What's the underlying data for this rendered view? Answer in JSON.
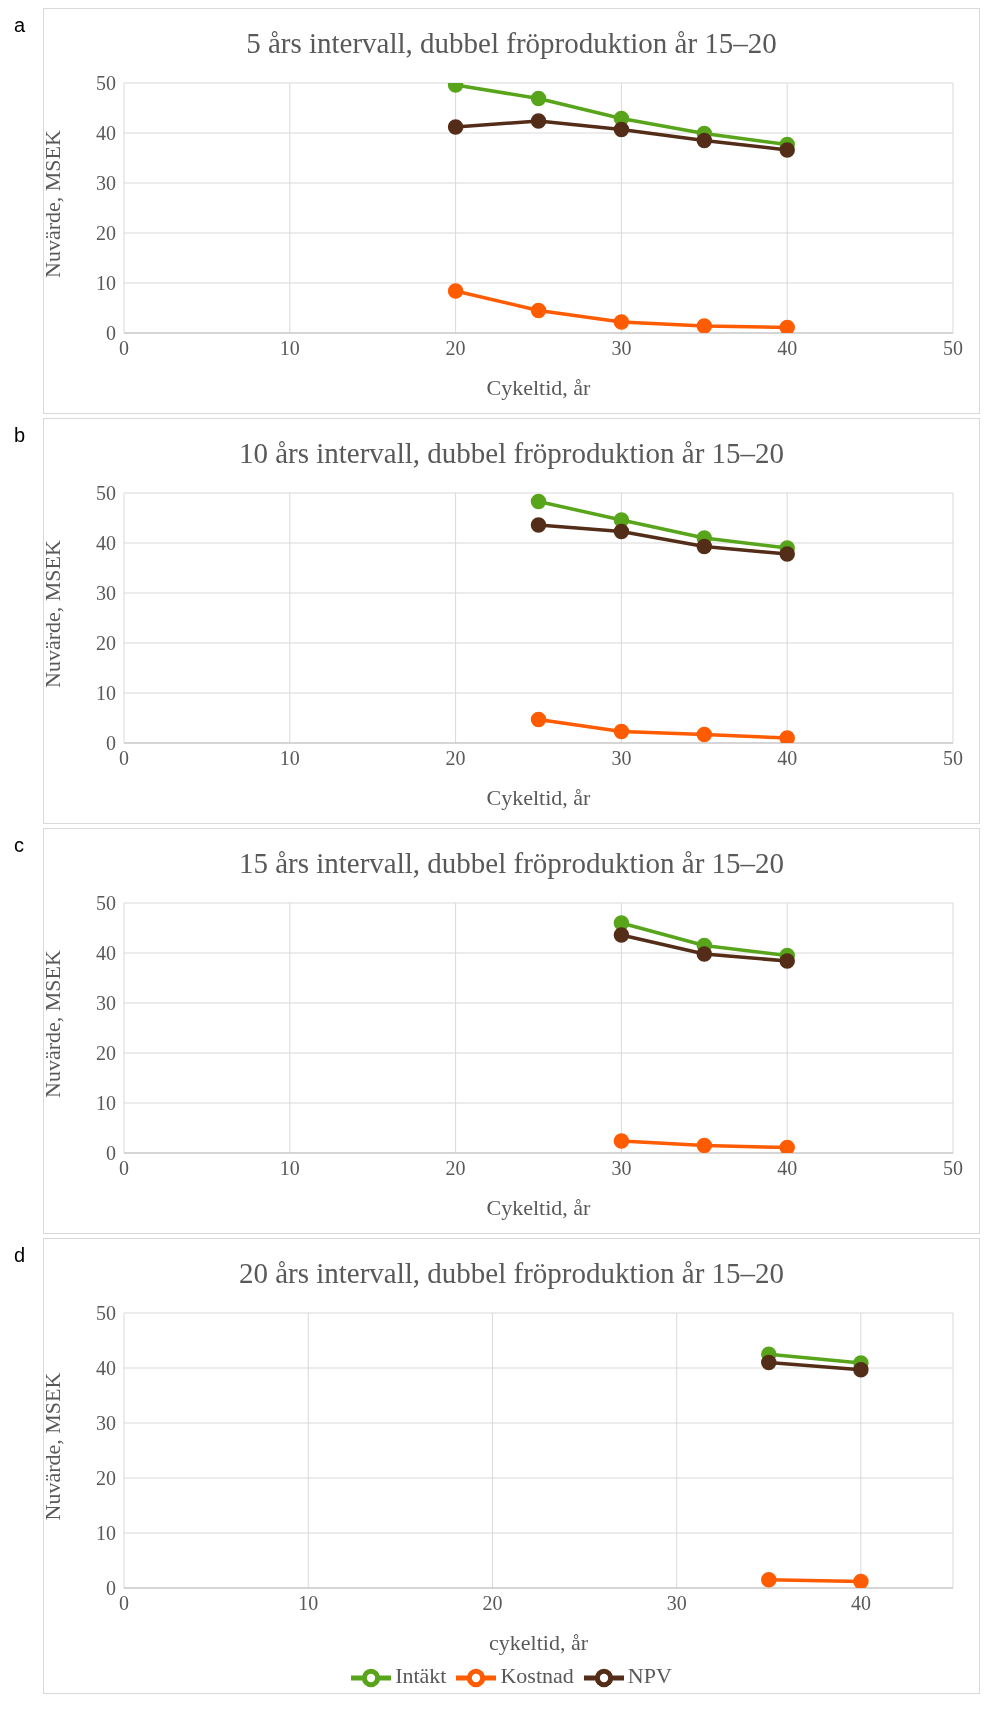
{
  "chart_data": [
    {
      "type": "line",
      "title": "5 års intervall, dubbel fröproduktion år 15–20",
      "xlabel": "Cykeltid, år",
      "ylabel": "Nuvärde, MSEK",
      "annotations": [
        "a"
      ],
      "x": [
        20,
        25,
        30,
        35,
        40
      ],
      "xlim": [
        0,
        50
      ],
      "xticks": [
        0,
        10,
        20,
        30,
        40,
        50
      ],
      "ylim": [
        0,
        50
      ],
      "yticks": [
        0,
        10,
        20,
        30,
        40,
        50
      ],
      "grid": true,
      "legend": false,
      "marker": "circle",
      "series": [
        {
          "color": "#58a51c",
          "values": [
            49.6,
            46.9,
            42.9,
            39.9,
            37.7
          ]
        },
        {
          "color": "#ff5b00",
          "values": [
            8.4,
            4.5,
            2.2,
            1.4,
            1.1
          ]
        },
        {
          "color": "#542d19",
          "values": [
            41.2,
            42.4,
            40.7,
            38.5,
            36.6
          ]
        }
      ]
    },
    {
      "type": "line",
      "title": "10 års intervall, dubbel fröproduktion år 15–20",
      "xlabel": "Cykeltid, år",
      "ylabel": "Nuvärde, MSEK",
      "annotations": [
        "b"
      ],
      "x": [
        25,
        30,
        35,
        40
      ],
      "xlim": [
        0,
        50
      ],
      "xticks": [
        0,
        10,
        20,
        30,
        40,
        50
      ],
      "ylim": [
        0,
        50
      ],
      "yticks": [
        0,
        10,
        20,
        30,
        40,
        50
      ],
      "grid": true,
      "legend": false,
      "marker": "circle",
      "series": [
        {
          "color": "#58a51c",
          "values": [
            48.3,
            44.6,
            41.0,
            39.0
          ]
        },
        {
          "color": "#ff5b00",
          "values": [
            4.7,
            2.3,
            1.7,
            1.0
          ]
        },
        {
          "color": "#542d19",
          "values": [
            43.6,
            42.3,
            39.3,
            37.8
          ]
        }
      ]
    },
    {
      "type": "line",
      "title": "15 års intervall, dubbel fröproduktion år 15–20",
      "xlabel": "Cykeltid, år",
      "ylabel": "Nuvärde, MSEK",
      "annotations": [
        "c"
      ],
      "x": [
        30,
        35,
        40
      ],
      "xlim": [
        0,
        50
      ],
      "xticks": [
        0,
        10,
        20,
        30,
        40,
        50
      ],
      "ylim": [
        0,
        50
      ],
      "yticks": [
        0,
        10,
        20,
        30,
        40,
        50
      ],
      "grid": true,
      "legend": false,
      "marker": "circle",
      "series": [
        {
          "color": "#58a51c",
          "values": [
            46.0,
            41.5,
            39.5
          ]
        },
        {
          "color": "#ff5b00",
          "values": [
            2.4,
            1.5,
            1.1
          ]
        },
        {
          "color": "#542d19",
          "values": [
            43.6,
            39.8,
            38.4
          ]
        }
      ]
    },
    {
      "type": "line",
      "title": "20 års intervall, dubbel fröproduktion år 15–20",
      "xlabel": "cykeltid, år",
      "ylabel": "Nuvärde, MSEK",
      "annotations": [
        "d"
      ],
      "x": [
        35,
        40
      ],
      "xlim": [
        0,
        45
      ],
      "xticks": [
        0,
        10,
        20,
        30,
        40
      ],
      "ylim": [
        0,
        50
      ],
      "yticks": [
        0,
        10,
        20,
        30,
        40,
        50
      ],
      "grid": true,
      "legend": "bottom",
      "marker": "circle",
      "series": [
        {
          "name": "Intäkt",
          "color": "#58a51c",
          "values": [
            42.5,
            40.9
          ]
        },
        {
          "name": "Kostnad",
          "color": "#ff5b00",
          "values": [
            1.5,
            1.2
          ]
        },
        {
          "name": "NPV",
          "color": "#542d19",
          "values": [
            41.0,
            39.7
          ]
        }
      ]
    }
  ]
}
